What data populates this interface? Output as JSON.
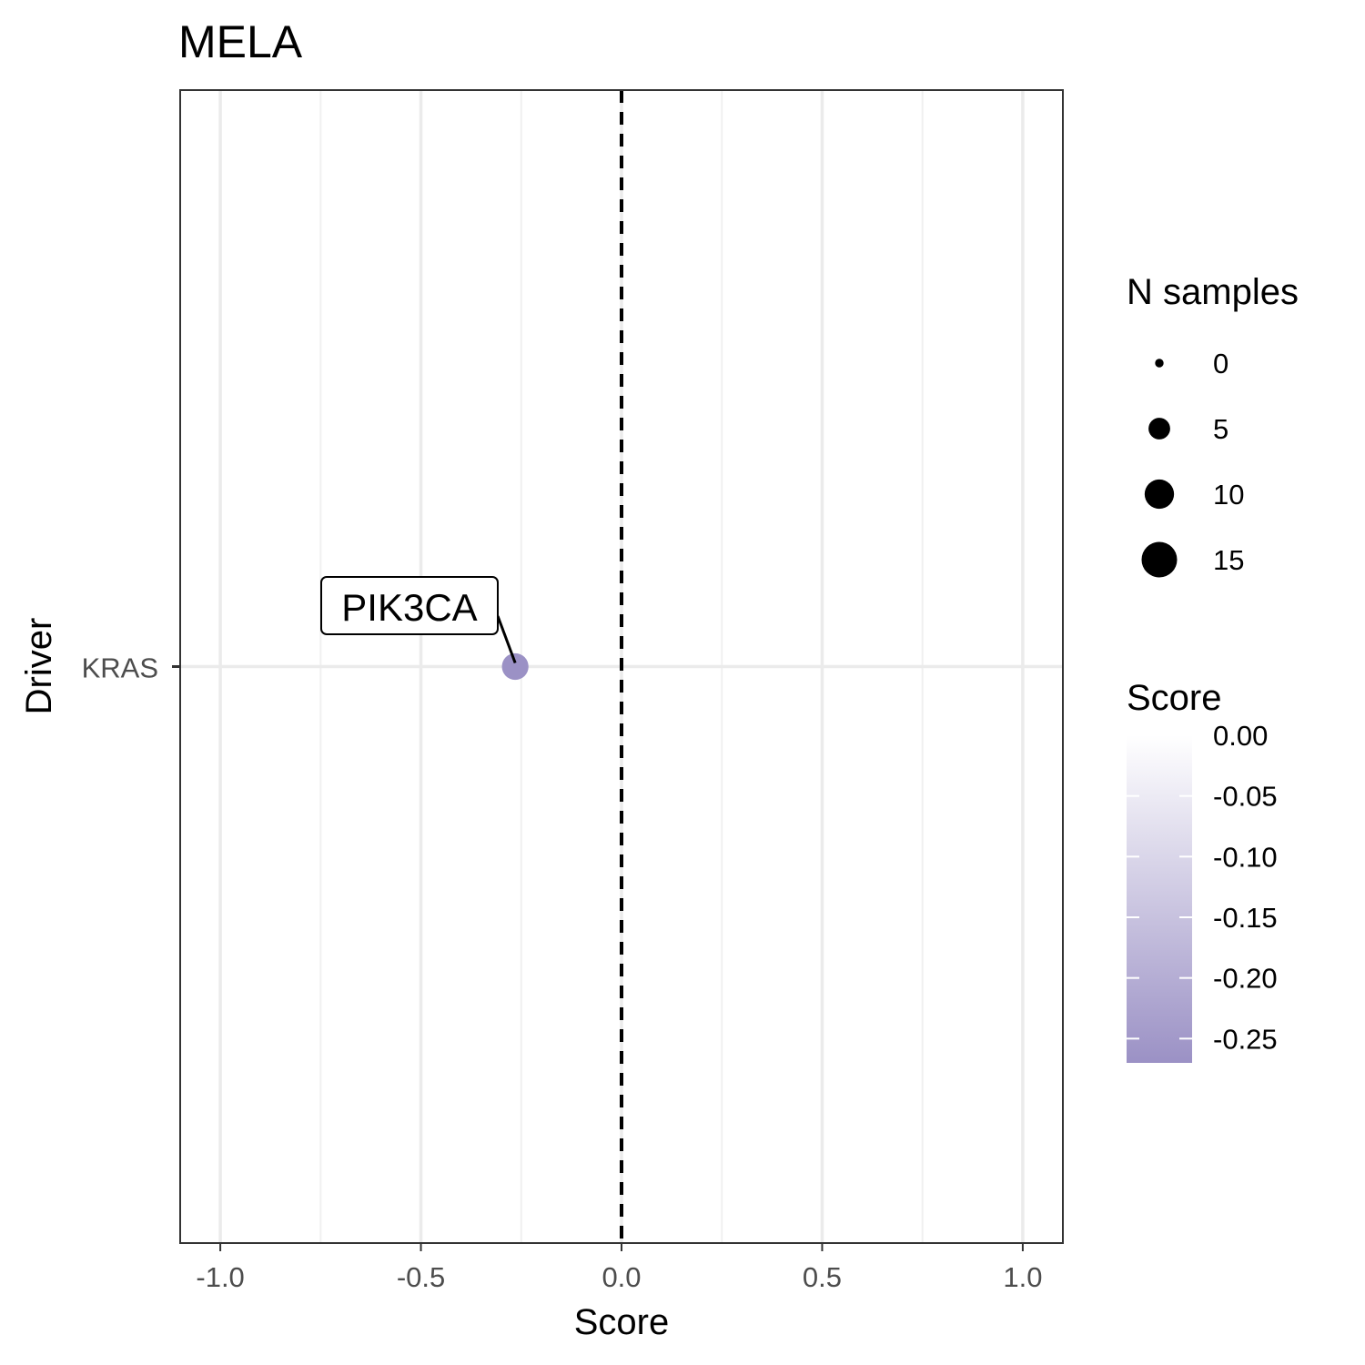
{
  "chart_data": {
    "type": "scatter",
    "title": "MELA",
    "xlabel": "Score",
    "ylabel": "Driver",
    "xlim": [
      -1.1,
      1.1
    ],
    "x_ticks": [
      -1.0,
      -0.5,
      0.0,
      0.5,
      1.0
    ],
    "x_tick_labels": [
      "-1.0",
      "-0.5",
      "0.0",
      "0.5",
      "1.0"
    ],
    "categories": [
      "KRAS"
    ],
    "grid": true,
    "reference_line": {
      "x": 0,
      "style": "dashed"
    },
    "points": [
      {
        "driver": "KRAS",
        "x": -0.265,
        "label": "PIK3CA",
        "n_samples": 8,
        "score": -0.265,
        "color": "#9b91c5"
      }
    ],
    "legend_size": {
      "title": "N samples",
      "entries": [
        {
          "label": "0",
          "value": 0
        },
        {
          "label": "5",
          "value": 5
        },
        {
          "label": "10",
          "value": 10
        },
        {
          "label": "15",
          "value": 15
        }
      ]
    },
    "legend_color": {
      "title": "Score",
      "range": [
        -0.27,
        0.0
      ],
      "color_low": "#9b91c5",
      "color_high": "#ffffff",
      "ticks": [
        {
          "label": "0.00",
          "value": 0.0
        },
        {
          "label": "-0.05",
          "value": -0.05
        },
        {
          "label": "-0.10",
          "value": -0.1
        },
        {
          "label": "-0.15",
          "value": -0.15
        },
        {
          "label": "-0.20",
          "value": -0.2
        },
        {
          "label": "-0.25",
          "value": -0.25
        }
      ]
    },
    "legend_placement": "right"
  }
}
